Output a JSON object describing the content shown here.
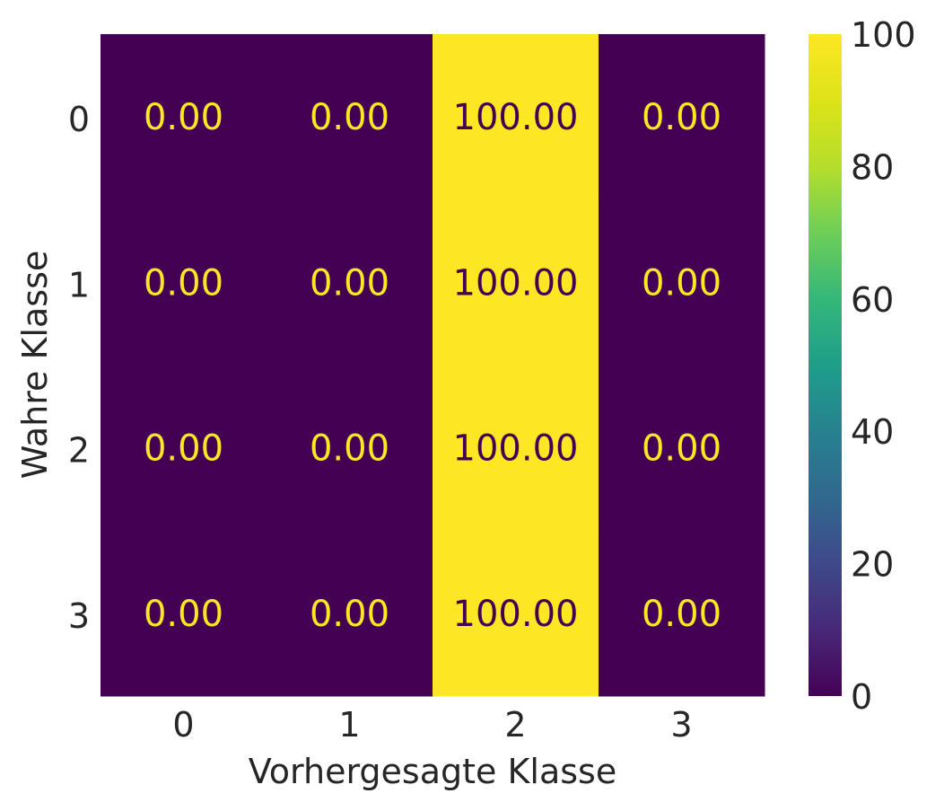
{
  "chart_data": {
    "type": "heatmap",
    "xlabel": "Vorhergesagte Klasse",
    "ylabel": "Wahre Klasse",
    "x_categories": [
      "0",
      "1",
      "2",
      "3"
    ],
    "y_categories": [
      "0",
      "1",
      "2",
      "3"
    ],
    "values": [
      [
        0.0,
        0.0,
        100.0,
        0.0
      ],
      [
        0.0,
        0.0,
        100.0,
        0.0
      ],
      [
        0.0,
        0.0,
        100.0,
        0.0
      ],
      [
        0.0,
        0.0,
        100.0,
        0.0
      ]
    ],
    "value_format_decimals": 2,
    "colormap": "viridis",
    "color_range": [
      0,
      100
    ],
    "colorbar_ticks": [
      "0",
      "20",
      "40",
      "60",
      "80",
      "100"
    ],
    "colors": {
      "low": "#440154",
      "high": "#fde725",
      "text": "#262626"
    },
    "grid": false
  }
}
